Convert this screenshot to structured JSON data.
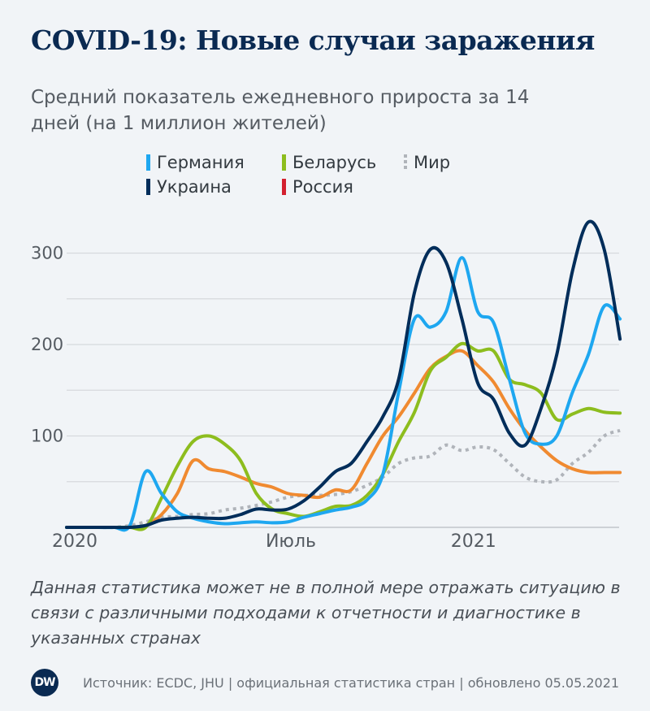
{
  "title": "COVID-19: Новые случаи заражения",
  "subtitle": "Средний показатель ежедневного прироста за 14 дней (на 1 миллион жителей)",
  "note": "Данная статистика может не в полной мере отражать ситуацию в связи с различными подходами к отчетности и диагностике в указанных странах",
  "footer": {
    "logo": "DW",
    "source": "Источник: ECDC, JHU | официальная статистика стран | обновлено 05.05.2021"
  },
  "colors": {
    "background": "#f1f4f7",
    "title": "#0a2a52",
    "russia_legend": "#d3202f"
  },
  "chart_data": {
    "type": "line",
    "title": "COVID-19: Новые случаи заражения",
    "subtitle": "Средний показатель ежедневного прироста за 14 дней (на 1 миллион жителей)",
    "xlabel": "",
    "ylabel": "",
    "ylim": [
      0,
      300
    ],
    "yticks": [
      100,
      200,
      300
    ],
    "ytick_labels": [
      "100",
      "200",
      "300"
    ],
    "xticks": [
      "2020-01-01",
      "2020-07-01",
      "2021-01-01"
    ],
    "xtick_labels": [
      "2020",
      "Июль",
      "2021"
    ],
    "grid": true,
    "legend_placement": "top",
    "x": [
      "2020-01-01",
      "2020-01-15",
      "2020-01-29",
      "2020-02-12",
      "2020-02-26",
      "2020-03-11",
      "2020-03-25",
      "2020-04-08",
      "2020-04-22",
      "2020-05-06",
      "2020-05-20",
      "2020-06-03",
      "2020-06-17",
      "2020-07-01",
      "2020-07-15",
      "2020-07-29",
      "2020-08-12",
      "2020-08-26",
      "2020-09-09",
      "2020-09-23",
      "2020-10-07",
      "2020-10-21",
      "2020-11-04",
      "2020-11-18",
      "2020-12-02",
      "2020-12-16",
      "2020-12-30",
      "2021-01-13",
      "2021-01-27",
      "2021-02-10",
      "2021-02-24",
      "2021-03-10",
      "2021-03-24",
      "2021-04-07",
      "2021-04-21",
      "2021-05-05"
    ],
    "series": [
      {
        "name": "Мир",
        "color": "#b0b4ba",
        "style": "dotted",
        "values": [
          0,
          0,
          0,
          0,
          2,
          6,
          11,
          12,
          14,
          15,
          19,
          21,
          24,
          28,
          33,
          35,
          35,
          36,
          39,
          46,
          55,
          70,
          76,
          78,
          90,
          84,
          88,
          85,
          70,
          55,
          50,
          52,
          70,
          82,
          100,
          106
        ]
      },
      {
        "name": "Россия",
        "color": "#f08a30",
        "legend_color": "#d3202f",
        "values": [
          0,
          0,
          0,
          0,
          0,
          2,
          14,
          37,
          73,
          64,
          61,
          55,
          48,
          44,
          37,
          35,
          33,
          41,
          41,
          70,
          100,
          121,
          147,
          174,
          187,
          193,
          177,
          159,
          130,
          106,
          88,
          73,
          64,
          60,
          60,
          60
        ]
      },
      {
        "name": "Беларусь",
        "color": "#8dbd1e",
        "values": [
          0,
          0,
          0,
          0,
          0,
          0,
          32,
          67,
          94,
          100,
          91,
          73,
          37,
          20,
          15,
          12,
          17,
          23,
          24,
          35,
          58,
          94,
          126,
          171,
          186,
          201,
          193,
          193,
          162,
          156,
          147,
          118,
          124,
          130,
          126,
          125
        ]
      },
      {
        "name": "Германия",
        "color": "#1ea7f0",
        "values": [
          0,
          0,
          0,
          0,
          2,
          61,
          37,
          17,
          10,
          6,
          4,
          5,
          6,
          5,
          6,
          11,
          15,
          19,
          22,
          30,
          58,
          148,
          228,
          219,
          236,
          295,
          236,
          224,
          162,
          103,
          91,
          100,
          148,
          189,
          242,
          228
        ]
      },
      {
        "name": "Украина",
        "color": "#002d5a",
        "values": [
          0,
          0,
          0,
          0,
          0,
          2,
          8,
          10,
          11,
          10,
          10,
          14,
          20,
          19,
          20,
          29,
          44,
          61,
          70,
          94,
          121,
          162,
          257,
          304,
          290,
          228,
          158,
          140,
          103,
          90,
          130,
          189,
          281,
          334,
          304,
          206
        ]
      }
    ]
  },
  "legend": [
    {
      "label": "Германия",
      "color": "#1ea7f0"
    },
    {
      "label": "Беларусь",
      "color": "#8dbd1e"
    },
    {
      "label": "Мир",
      "color": "#b0b4ba",
      "style": "dotted"
    },
    {
      "label": "Украина",
      "color": "#002d5a"
    },
    {
      "label": "Россия",
      "color": "#d3202f"
    }
  ]
}
